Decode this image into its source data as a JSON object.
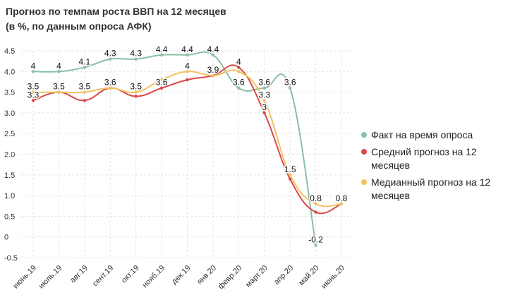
{
  "title": {
    "line1": "Прогноз по темпам роста ВВП на 12 месяцев",
    "line2": "(в %, по данным опроса АФК)"
  },
  "colors": {
    "fact": "#8bbfa3",
    "avg": "#d94a4a",
    "median": "#f2c260",
    "grid": "#e3e3e3"
  },
  "chart_data": {
    "type": "line",
    "categories": [
      "июнь.19",
      "июль.19",
      "авг.19",
      "сент.19",
      "окт.19",
      "нояб.19",
      "дек.19",
      "янв.20",
      "февр.20",
      "март.20",
      "апр.20",
      "май.20",
      "июнь.20"
    ],
    "ylim": [
      -0.5,
      4.5
    ],
    "yticks": [
      "4.5",
      "4.0",
      "3.5",
      "3.0",
      "2.5",
      "2.0",
      "1.5",
      "1.0",
      "0.5",
      "0",
      "-0.5"
    ],
    "ytick_values": [
      4.5,
      4.0,
      3.5,
      3.0,
      2.5,
      2.0,
      1.5,
      1.0,
      0.5,
      0,
      -0.5
    ],
    "grid": true,
    "legend_position": "right",
    "series": [
      {
        "name": "Факт на время опроса",
        "color": "#8bbfa3",
        "values": [
          4.0,
          4.0,
          4.1,
          4.3,
          4.3,
          4.4,
          4.4,
          4.4,
          3.6,
          3.6,
          3.6,
          -0.2,
          null
        ]
      },
      {
        "name": "Средний прогноз на 12 месяцев",
        "color": "#d94a4a",
        "values": [
          3.3,
          3.5,
          3.3,
          3.6,
          3.4,
          3.6,
          3.8,
          3.9,
          4.1,
          3.0,
          1.4,
          0.6,
          0.8
        ]
      },
      {
        "name": "Медианный прогноз на 12 месяцев",
        "color": "#f2c260",
        "values": [
          3.5,
          3.5,
          3.5,
          3.6,
          3.5,
          3.8,
          4.0,
          3.9,
          4.0,
          3.3,
          1.5,
          0.8,
          0.8
        ]
      }
    ],
    "data_labels": [
      {
        "text": "4",
        "xi": 0,
        "y": 4.0
      },
      {
        "text": "4",
        "xi": 1,
        "y": 4.0
      },
      {
        "text": "4.1",
        "xi": 2,
        "y": 4.1
      },
      {
        "text": "4.3",
        "xi": 3,
        "y": 4.3
      },
      {
        "text": "4.3",
        "xi": 4,
        "y": 4.3
      },
      {
        "text": "4.4",
        "xi": 5,
        "y": 4.4
      },
      {
        "text": "4.4",
        "xi": 6,
        "y": 4.4
      },
      {
        "text": "4.4",
        "xi": 7,
        "y": 4.4
      },
      {
        "text": "3.5",
        "xi": 0,
        "y": 3.5
      },
      {
        "text": "3.3",
        "xi": 0,
        "y": 3.3
      },
      {
        "text": "3.5",
        "xi": 1,
        "y": 3.5
      },
      {
        "text": "3.5",
        "xi": 2,
        "y": 3.5
      },
      {
        "text": "3.6",
        "xi": 3,
        "y": 3.6
      },
      {
        "text": "3.5",
        "xi": 4,
        "y": 3.5
      },
      {
        "text": "3.6",
        "xi": 5,
        "y": 3.6
      },
      {
        "text": "4",
        "xi": 6,
        "y": 4.0
      },
      {
        "text": "3.9",
        "xi": 7,
        "y": 3.9
      },
      {
        "text": "4",
        "xi": 8,
        "y": 4.1
      },
      {
        "text": "3.6",
        "xi": 8,
        "y": 3.6
      },
      {
        "text": "3.6",
        "xi": 9,
        "y": 3.6
      },
      {
        "text": "3.6",
        "xi": 10,
        "y": 3.6
      },
      {
        "text": "3.3",
        "xi": 9,
        "y": 3.3
      },
      {
        "text": "3",
        "xi": 9,
        "y": 3.0
      },
      {
        "text": "1.5",
        "xi": 10,
        "y": 1.5
      },
      {
        "text": "0.8",
        "xi": 11,
        "y": 0.8
      },
      {
        "text": "-0.2",
        "xi": 11,
        "y": -0.2
      },
      {
        "text": "0.8",
        "xi": 12,
        "y": 0.8
      }
    ]
  }
}
